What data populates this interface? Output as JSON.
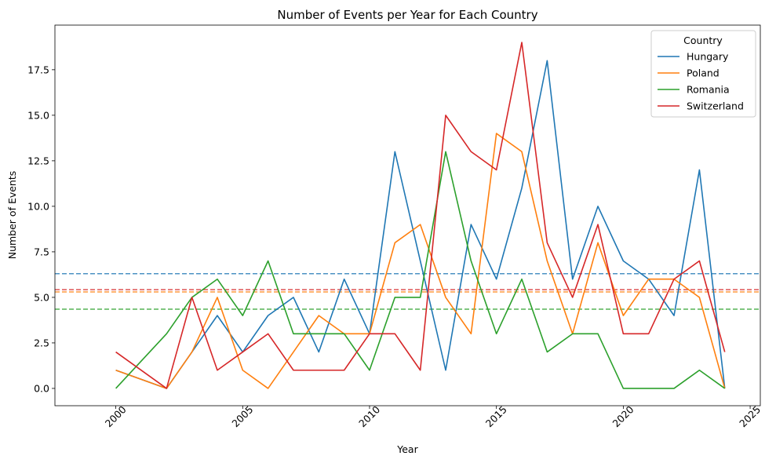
{
  "chart_data": {
    "type": "line",
    "title": "Number of Events per Year for Each Country",
    "xlabel": "Year",
    "ylabel": "Number of Events",
    "xlim": [
      1997.6,
      2025.4
    ],
    "ylim": [
      -0.95,
      19.95
    ],
    "x_ticks": [
      2000,
      2005,
      2010,
      2015,
      2020,
      2025
    ],
    "y_ticks": [
      0.0,
      2.5,
      5.0,
      7.5,
      10.0,
      12.5,
      15.0,
      17.5
    ],
    "x_tick_labels": [
      "2000",
      "2005",
      "2010",
      "2015",
      "2020",
      "2025"
    ],
    "y_tick_labels": [
      "0.0",
      "2.5",
      "5.0",
      "7.5",
      "10.0",
      "12.5",
      "15.0",
      "17.5"
    ],
    "grid": false,
    "legend": {
      "title": "Country",
      "placement": "top-right"
    },
    "x": [
      2000,
      2002,
      2003,
      2004,
      2005,
      2006,
      2007,
      2008,
      2009,
      2010,
      2011,
      2012,
      2013,
      2014,
      2015,
      2016,
      2017,
      2018,
      2019,
      2020,
      2021,
      2022,
      2023,
      2024
    ],
    "series": [
      {
        "name": "Hungary",
        "color": "#1f77b4",
        "mean": 6.3,
        "values": [
          1,
          0,
          2,
          4,
          2,
          4,
          5,
          2,
          6,
          3,
          13,
          7,
          1,
          9,
          6,
          11,
          18,
          6,
          10,
          7,
          6,
          4,
          12,
          0
        ]
      },
      {
        "name": "Poland",
        "color": "#ff7f0e",
        "mean": 5.3,
        "values": [
          1,
          0,
          2,
          5,
          1,
          0,
          2,
          4,
          3,
          3,
          8,
          9,
          5,
          3,
          14,
          13,
          7,
          3,
          8,
          4,
          6,
          6,
          5,
          0
        ]
      },
      {
        "name": "Romania",
        "color": "#2ca02c",
        "mean": 4.35,
        "values": [
          0,
          3,
          5,
          6,
          4,
          7,
          3,
          3,
          3,
          1,
          5,
          5,
          13,
          7,
          3,
          6,
          2,
          3,
          3,
          0,
          0,
          0,
          1,
          0
        ]
      },
      {
        "name": "Switzerland",
        "color": "#d62728",
        "mean": 5.42,
        "values": [
          2,
          0,
          5,
          1,
          2,
          3,
          1,
          1,
          1,
          3,
          3,
          1,
          15,
          13,
          12,
          19,
          8,
          5,
          9,
          3,
          3,
          6,
          7,
          2
        ]
      }
    ]
  }
}
